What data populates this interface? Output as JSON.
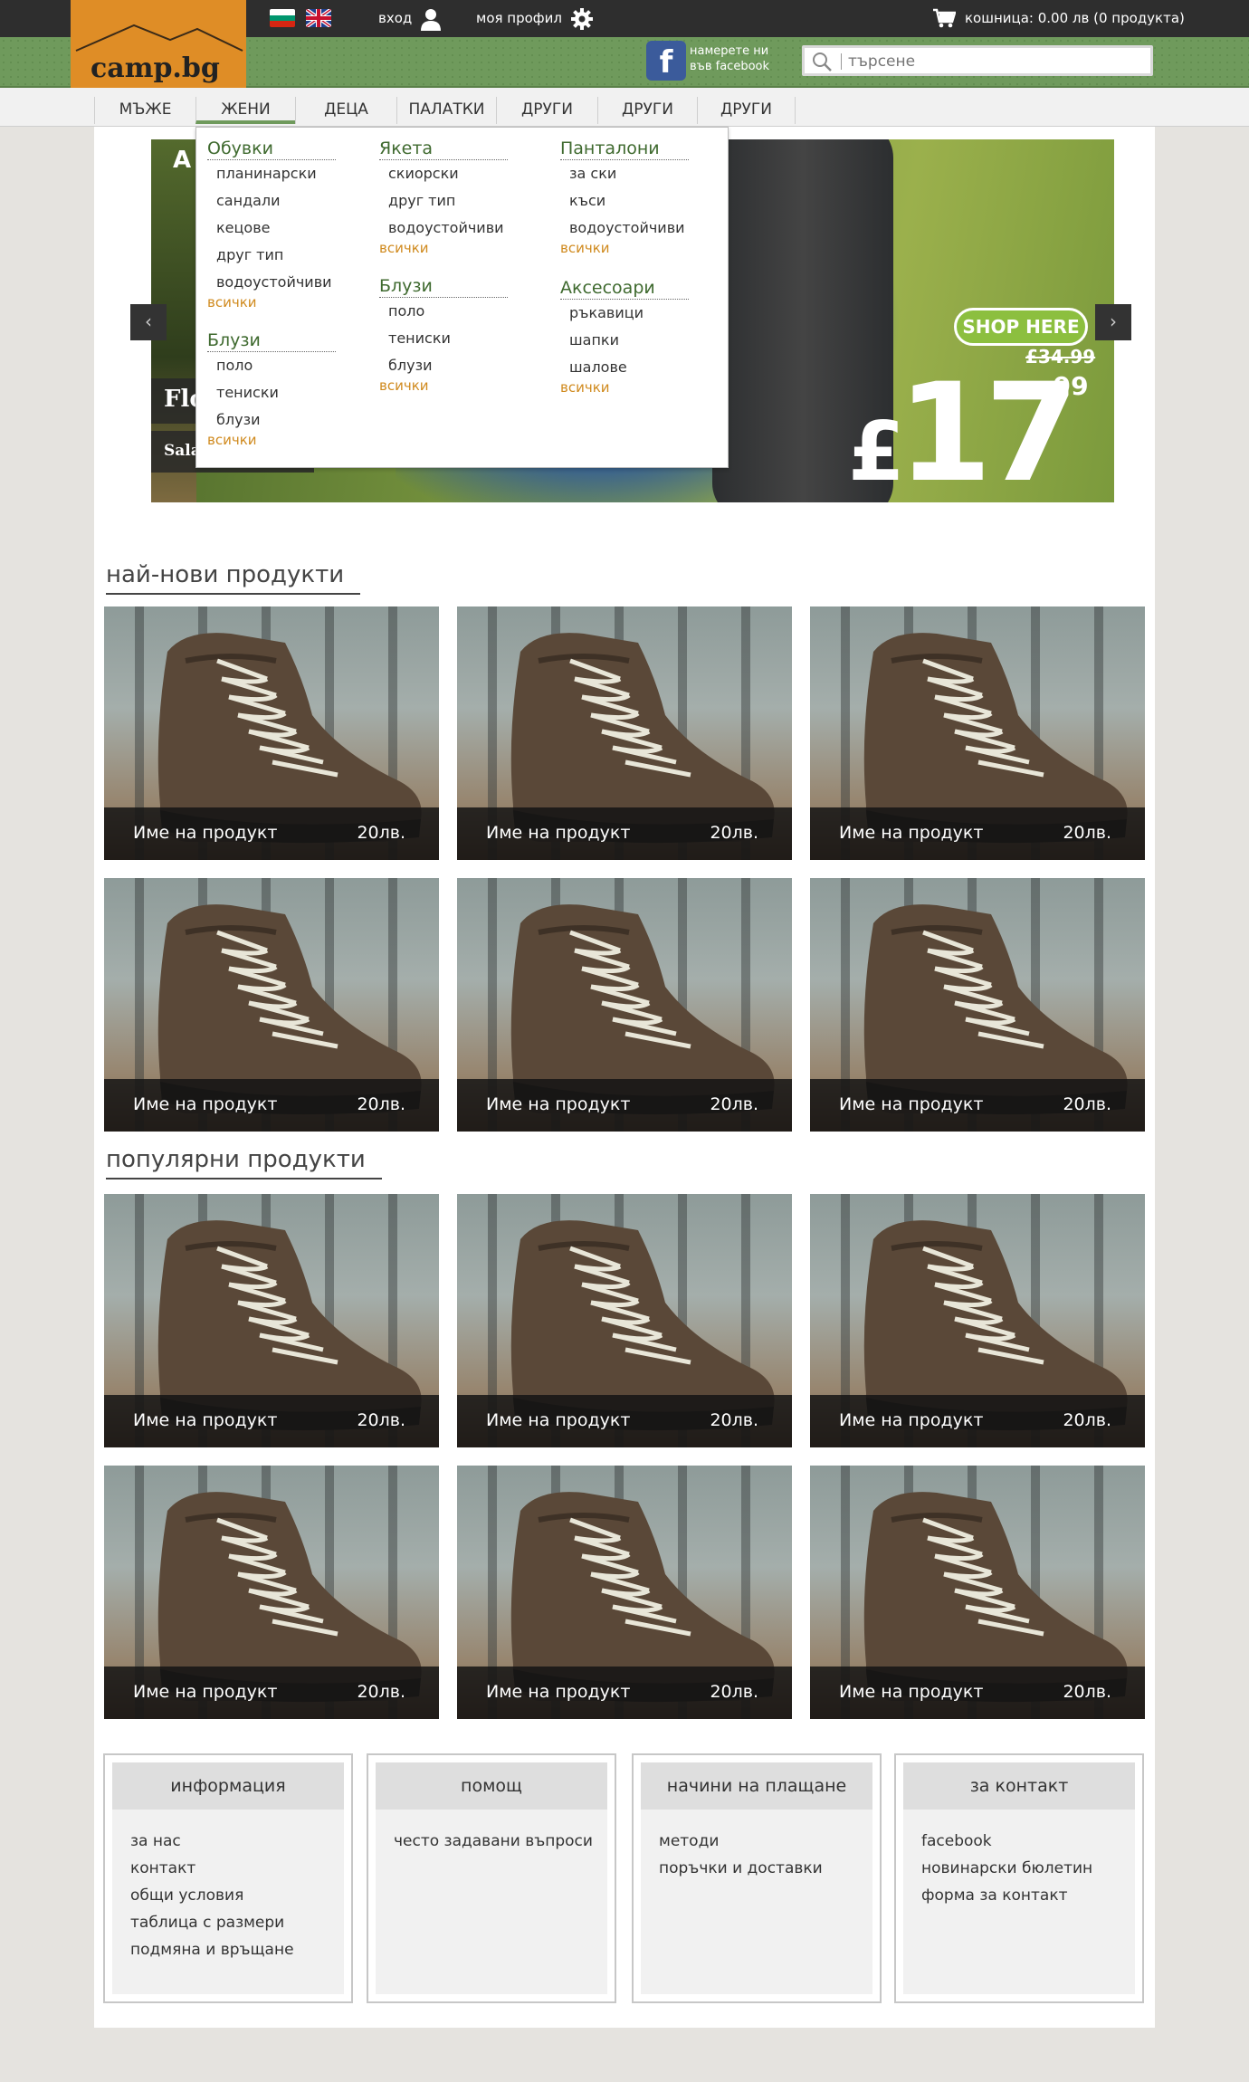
{
  "topbar": {
    "flag_bg_label": "BG",
    "flag_en_label": "EN",
    "login": "вход",
    "profile": "моя профил",
    "cart": "кошница: 0.00 лв (0 продукта)"
  },
  "header": {
    "logo": "camp.bg",
    "facebook_icon": "f",
    "facebook_line1": "намерете ни",
    "facebook_line2": "във facebook",
    "search_placeholder": "търсене"
  },
  "nav": {
    "items": [
      {
        "label": "МЪЖЕ"
      },
      {
        "label": "ЖЕНИ"
      },
      {
        "label": "ДЕЦА"
      },
      {
        "label": "ПАЛАТКИ"
      },
      {
        "label": "ДРУГИ"
      },
      {
        "label": "ДРУГИ"
      },
      {
        "label": "ДРУГИ"
      }
    ],
    "active": "ЖЕНИ"
  },
  "dropdown": {
    "all_label": "всички",
    "groups": [
      {
        "heading": "Обувки",
        "items": [
          "планинарски",
          "сандали",
          "кецове",
          "друг тип",
          "водоустойчиви"
        ]
      },
      {
        "heading": "Блузи",
        "items": [
          "поло",
          "тениски",
          "блузи"
        ]
      },
      {
        "heading": "Якета",
        "items": [
          "скиорски",
          "друг тип",
          "водоустойчиви"
        ]
      },
      {
        "heading": "Блузи",
        "items": [
          "поло",
          "тениски",
          "блузи"
        ]
      },
      {
        "heading": "Панталони",
        "items": [
          "за ски",
          "къси",
          "водоустойчиви"
        ]
      },
      {
        "heading": "Аксесоари",
        "items": [
          "ръкавици",
          "шапки",
          "шалове"
        ]
      }
    ]
  },
  "banner": {
    "letter": "A",
    "label1": "Flo",
    "label2": "Sala",
    "shop_here": "SHOP HERE",
    "old_price": "£34.99",
    "currency": "£",
    "price": "17",
    "cents": ".99",
    "prev": "‹",
    "next": "›"
  },
  "sections": {
    "newest_title": "най-нови продукти",
    "popular_title": "популярни продукти"
  },
  "products": {
    "newest": [
      {
        "name": "Име на продукт",
        "price": "20лв."
      },
      {
        "name": "Име на продукт",
        "price": "20лв."
      },
      {
        "name": "Име на продукт",
        "price": "20лв."
      },
      {
        "name": "Име на продукт",
        "price": "20лв."
      },
      {
        "name": "Име на продукт",
        "price": "20лв."
      },
      {
        "name": "Име на продукт",
        "price": "20лв."
      }
    ],
    "popular": [
      {
        "name": "Име на продукт",
        "price": "20лв."
      },
      {
        "name": "Име на продукт",
        "price": "20лв."
      },
      {
        "name": "Име на продукт",
        "price": "20лв."
      },
      {
        "name": "Име на продукт",
        "price": "20лв."
      },
      {
        "name": "Име на продукт",
        "price": "20лв."
      },
      {
        "name": "Име на продукт",
        "price": "20лв."
      }
    ]
  },
  "footer": [
    {
      "title": "информация",
      "links": [
        "за нас",
        "контакт",
        "общи условия",
        "таблица с размери",
        "подмяна и връщане"
      ]
    },
    {
      "title": "помощ",
      "links": [
        "често задавани въпроси"
      ]
    },
    {
      "title": "начини на плащане",
      "links": [
        "методи",
        "поръчки и доставки"
      ]
    },
    {
      "title": "за контакт",
      "links": [
        "facebook",
        "новинарски бюлетин",
        "форма за контакт"
      ]
    }
  ],
  "colors": {
    "accent_green": "#6f9a5c",
    "logo_orange": "#df8d26",
    "link_orange": "#d08a1e",
    "topbar": "#2e2e2e"
  }
}
